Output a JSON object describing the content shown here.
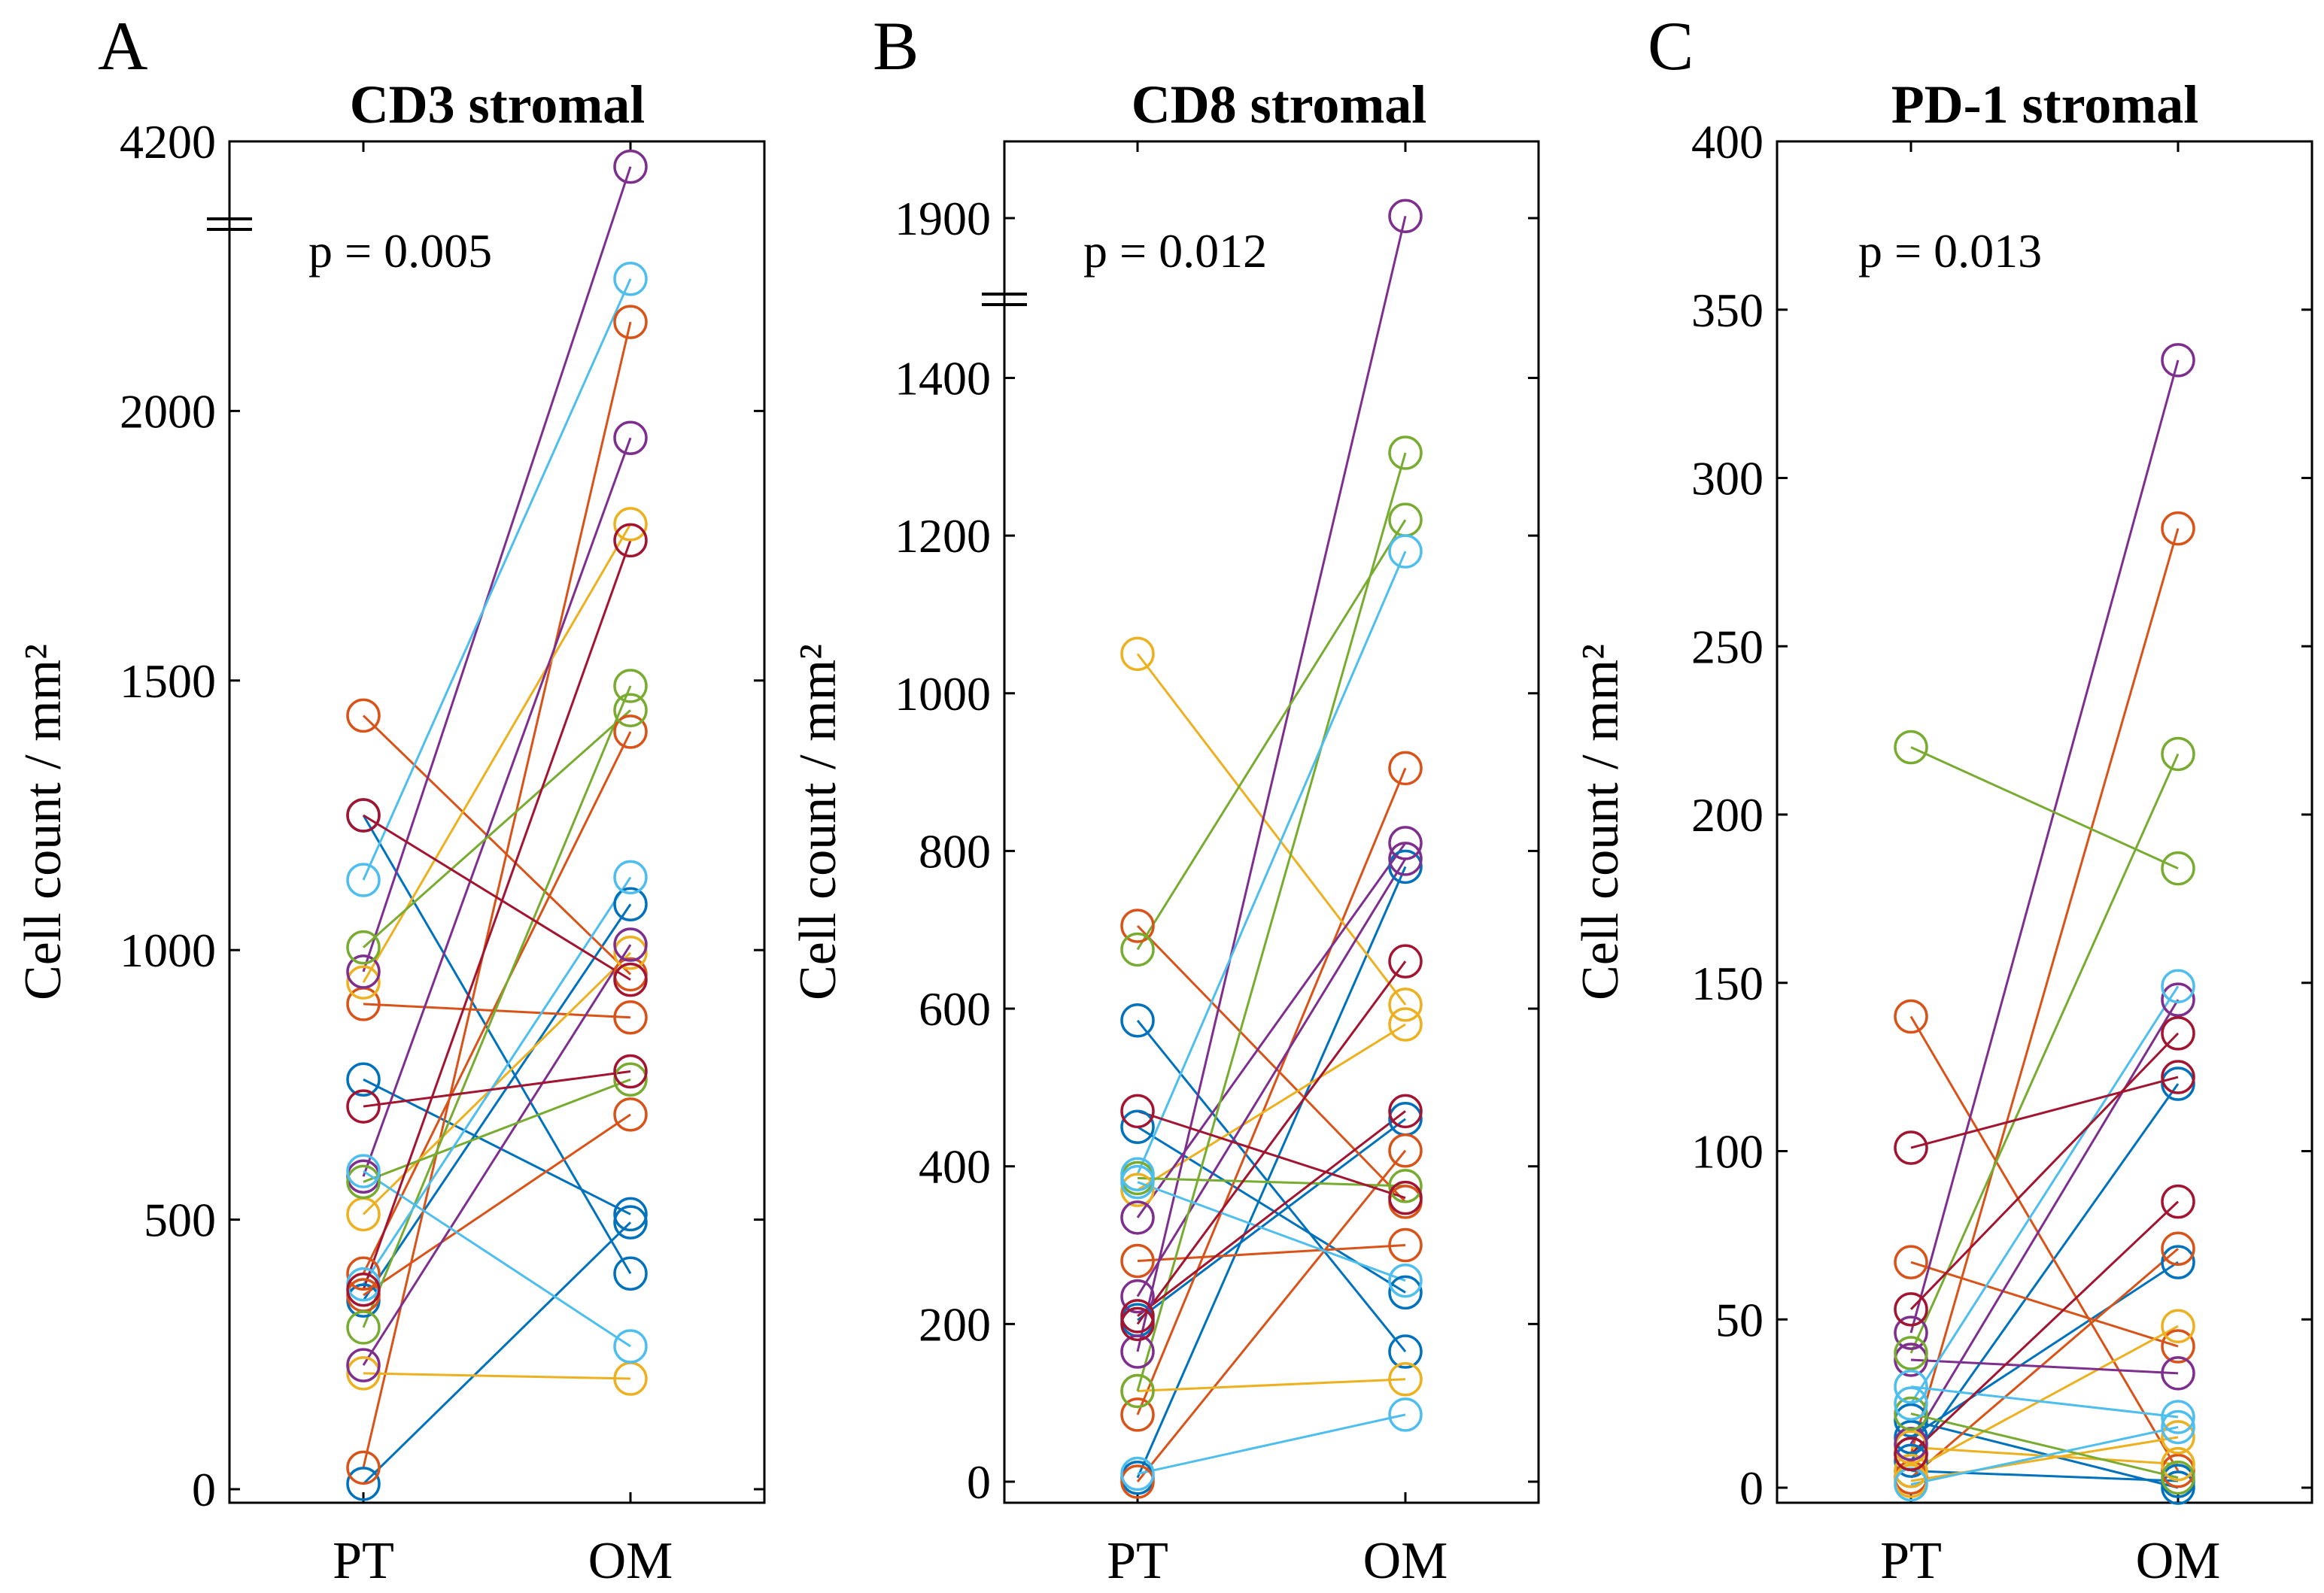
{
  "figure": {
    "colors": [
      "#0072BD",
      "#D95319",
      "#EDB120",
      "#7E2F8E",
      "#77AC30",
      "#4DBEEE",
      "#A2142F"
    ]
  },
  "chart_data": [
    {
      "panel_letter": "A",
      "type": "line",
      "title": "CD3 stromal",
      "ylabel": "Cell count / mm²",
      "xlabel": "",
      "categories": [
        "PT",
        "OM"
      ],
      "ylim": [
        0,
        2500
      ],
      "yticks": [
        0,
        500,
        1000,
        1500,
        2000
      ],
      "axis_break": {
        "at": 2350,
        "top_value": 4200,
        "top_label": "4200"
      },
      "annotation": "p = 0.005",
      "grid": false,
      "series": [
        {
          "pt": 10,
          "om": 495,
          "color": 0
        },
        {
          "pt": 1250,
          "om": 400,
          "color": 0
        },
        {
          "pt": 760,
          "om": 510,
          "color": 0
        },
        {
          "pt": 350,
          "om": 1085,
          "color": 0
        },
        {
          "pt": 1435,
          "om": 955,
          "color": 1
        },
        {
          "pt": 40,
          "om": 2165,
          "color": 1
        },
        {
          "pt": 900,
          "om": 875,
          "color": 1
        },
        {
          "pt": 400,
          "om": 1405,
          "color": 1
        },
        {
          "pt": 360,
          "om": 695,
          "color": 1
        },
        {
          "pt": 940,
          "om": 1790,
          "color": 2
        },
        {
          "pt": 510,
          "om": 995,
          "color": 2
        },
        {
          "pt": 215,
          "om": 205,
          "color": 2
        },
        {
          "pt": 960,
          "om": 4160,
          "color": 3
        },
        {
          "pt": 580,
          "om": 1950,
          "color": 3
        },
        {
          "pt": 230,
          "om": 1010,
          "color": 3
        },
        {
          "pt": 1005,
          "om": 1445,
          "color": 4
        },
        {
          "pt": 570,
          "om": 760,
          "color": 4
        },
        {
          "pt": 300,
          "om": 1490,
          "color": 4
        },
        {
          "pt": 1130,
          "om": 2245,
          "color": 5
        },
        {
          "pt": 590,
          "om": 265,
          "color": 5
        },
        {
          "pt": 380,
          "om": 1135,
          "color": 5
        },
        {
          "pt": 1250,
          "om": 945,
          "color": 6
        },
        {
          "pt": 710,
          "om": 775,
          "color": 6
        },
        {
          "pt": 370,
          "om": 1760,
          "color": 6
        }
      ]
    },
    {
      "panel_letter": "B",
      "type": "line",
      "title": "CD8 stromal",
      "ylabel": "Cell count / mm²",
      "xlabel": "",
      "categories": [
        "PT",
        "OM"
      ],
      "ylim": [
        0,
        1700
      ],
      "yticks": [
        0,
        200,
        400,
        600,
        800,
        1000,
        1200,
        1400
      ],
      "axis_break": {
        "at": 1500,
        "top_value": 1900,
        "top_label": "1900"
      },
      "annotation": "p = 0.012",
      "grid": false,
      "series": [
        {
          "pt": 585,
          "om": 165,
          "color": 0
        },
        {
          "pt": 450,
          "om": 240,
          "color": 0
        },
        {
          "pt": 5,
          "om": 780,
          "color": 0
        },
        {
          "pt": 205,
          "om": 460,
          "color": 0
        },
        {
          "pt": 705,
          "om": 355,
          "color": 1
        },
        {
          "pt": 280,
          "om": 300,
          "color": 1
        },
        {
          "pt": 85,
          "om": 905,
          "color": 1
        },
        {
          "pt": 0,
          "om": 420,
          "color": 1
        },
        {
          "pt": 1050,
          "om": 605,
          "color": 2
        },
        {
          "pt": 370,
          "om": 580,
          "color": 2
        },
        {
          "pt": 115,
          "om": 130,
          "color": 2
        },
        {
          "pt": 165,
          "om": 1910,
          "color": 3
        },
        {
          "pt": 335,
          "om": 810,
          "color": 3
        },
        {
          "pt": 235,
          "om": 790,
          "color": 3
        },
        {
          "pt": 675,
          "om": 1220,
          "color": 4
        },
        {
          "pt": 385,
          "om": 375,
          "color": 4
        },
        {
          "pt": 115,
          "om": 1305,
          "color": 4
        },
        {
          "pt": 390,
          "om": 1180,
          "color": 5
        },
        {
          "pt": 380,
          "om": 255,
          "color": 5
        },
        {
          "pt": 10,
          "om": 85,
          "color": 5
        },
        {
          "pt": 470,
          "om": 360,
          "color": 6
        },
        {
          "pt": 200,
          "om": 660,
          "color": 6
        },
        {
          "pt": 210,
          "om": 470,
          "color": 6
        }
      ]
    },
    {
      "panel_letter": "C",
      "type": "line",
      "title": "PD-1 stromal",
      "ylabel": "Cell count / mm²",
      "xlabel": "",
      "categories": [
        "PT",
        "OM"
      ],
      "ylim": [
        0,
        400
      ],
      "yticks": [
        0,
        50,
        100,
        150,
        200,
        250,
        300,
        350,
        400
      ],
      "axis_break": null,
      "annotation": "p = 0.013",
      "grid": false,
      "series": [
        {
          "pt": 20,
          "om": 0,
          "color": 0
        },
        {
          "pt": 15,
          "om": 67,
          "color": 0
        },
        {
          "pt": 8,
          "om": 120,
          "color": 0
        },
        {
          "pt": 5,
          "om": 2,
          "color": 0
        },
        {
          "pt": 140,
          "om": 5,
          "color": 1
        },
        {
          "pt": 67,
          "om": 42,
          "color": 1
        },
        {
          "pt": 10,
          "om": 285,
          "color": 1
        },
        {
          "pt": 3,
          "om": 71,
          "color": 1
        },
        {
          "pt": 5,
          "om": 48,
          "color": 2
        },
        {
          "pt": 2,
          "om": 15,
          "color": 2
        },
        {
          "pt": 12,
          "om": 7,
          "color": 2
        },
        {
          "pt": 46,
          "om": 335,
          "color": 3
        },
        {
          "pt": 38,
          "om": 34,
          "color": 3
        },
        {
          "pt": 13,
          "om": 145,
          "color": 3
        },
        {
          "pt": 220,
          "om": 184,
          "color": 4
        },
        {
          "pt": 40,
          "om": 218,
          "color": 4
        },
        {
          "pt": 22,
          "om": 3,
          "color": 4
        },
        {
          "pt": 30,
          "om": 21,
          "color": 5
        },
        {
          "pt": 25,
          "om": 149,
          "color": 5
        },
        {
          "pt": 1,
          "om": 18,
          "color": 5
        },
        {
          "pt": 101,
          "om": 122,
          "color": 6
        },
        {
          "pt": 53,
          "om": 135,
          "color": 6
        },
        {
          "pt": 10,
          "om": 85,
          "color": 6
        }
      ]
    }
  ]
}
